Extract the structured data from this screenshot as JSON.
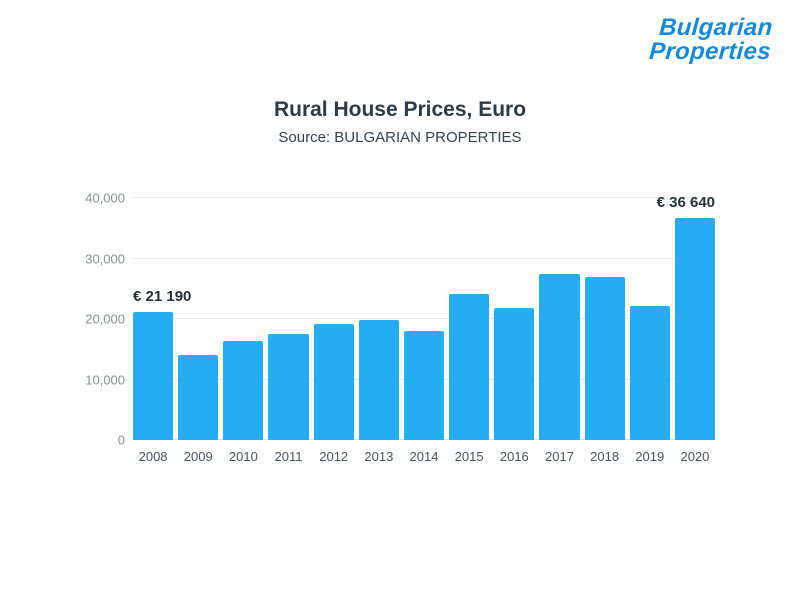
{
  "logo": {
    "line1": "Bulgarian",
    "line2": "Properties",
    "color": "#1689dc"
  },
  "header": {
    "title": "Rural House Prices, Euro",
    "subtitle": "Source: BULGARIAN PROPERTIES"
  },
  "chart_data": {
    "type": "bar",
    "title": "Rural House Prices, Euro",
    "subtitle": "Source: BULGARIAN PROPERTIES",
    "categories": [
      "2008",
      "2009",
      "2010",
      "2011",
      "2012",
      "2013",
      "2014",
      "2015",
      "2016",
      "2017",
      "2018",
      "2019",
      "2020"
    ],
    "values": [
      21190,
      14000,
      16400,
      17500,
      19200,
      19800,
      18000,
      24100,
      21800,
      27500,
      26900,
      22100,
      36640
    ],
    "bar_color": "#24aef1",
    "xlabel": "",
    "ylabel": "",
    "ylim": [
      0,
      40000
    ],
    "yticks": [
      "0",
      "10,000",
      "20,000",
      "30,000",
      "40,000"
    ],
    "grid": "horizontal",
    "legend": "none",
    "annotations": [
      {
        "category": "2008",
        "text": "€ 21 190"
      },
      {
        "category": "2020",
        "text": "€ 36 640"
      }
    ]
  }
}
